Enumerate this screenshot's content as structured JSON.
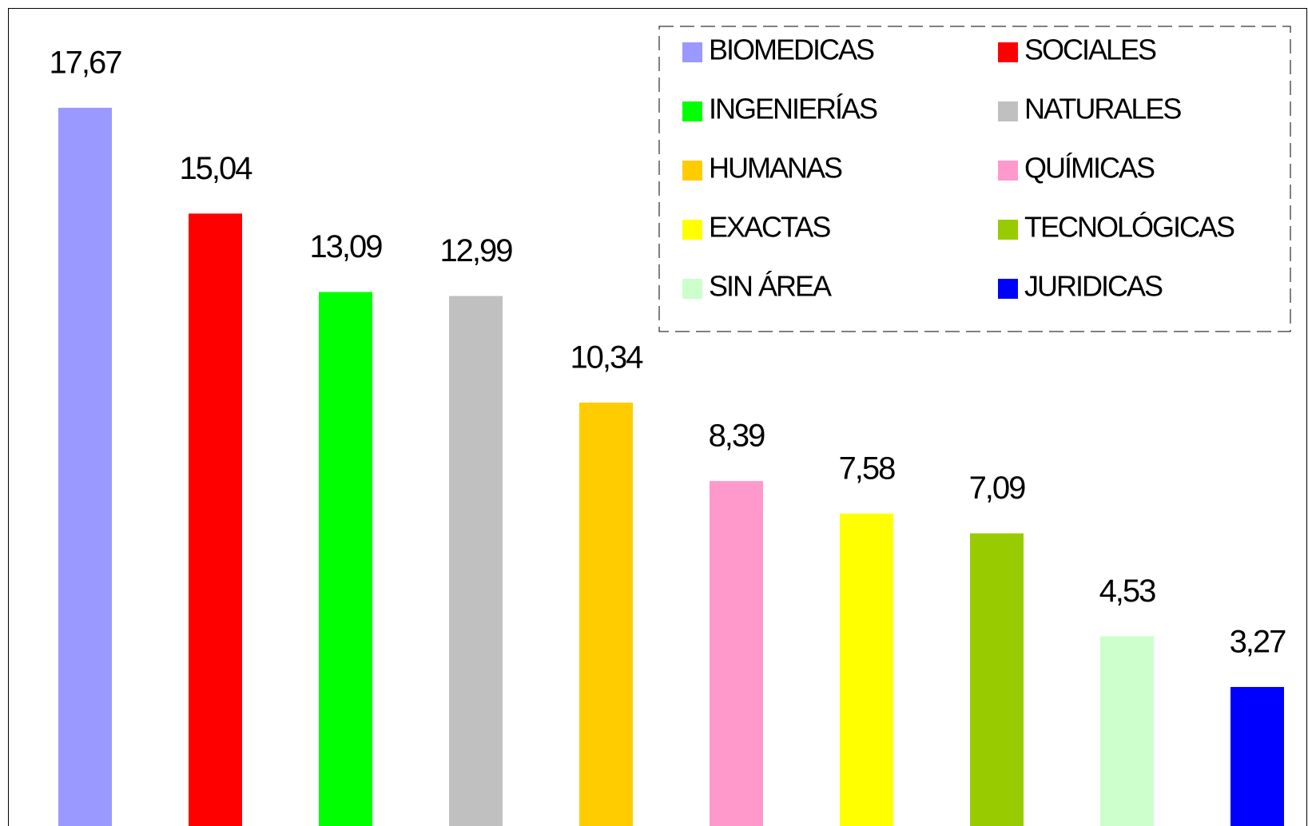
{
  "chart_data": {
    "type": "bar",
    "categories": [
      "BIOMEDICAS",
      "SOCIALES",
      "INGENIERÍAS",
      "NATURALES",
      "HUMANAS",
      "QUÍMICAS",
      "EXACTAS",
      "TECNOLÓGICAS",
      "SIN ÁREA",
      "JURIDICAS"
    ],
    "values": [
      17.67,
      15.04,
      13.09,
      12.99,
      10.34,
      8.39,
      7.58,
      7.09,
      4.53,
      3.27
    ],
    "value_labels": [
      "17,67",
      "15,04",
      "13,09",
      "12,99",
      "10,34",
      "8,39",
      "7,58",
      "7,09",
      "4,53",
      "3,27"
    ],
    "colors": [
      "#9999ff",
      "#ff0000",
      "#00ff00",
      "#c0c0c0",
      "#ffcc00",
      "#ff99cc",
      "#ffff00",
      "#99cc00",
      "#ccffcc",
      "#0000ff"
    ],
    "legend": "top-right"
  }
}
